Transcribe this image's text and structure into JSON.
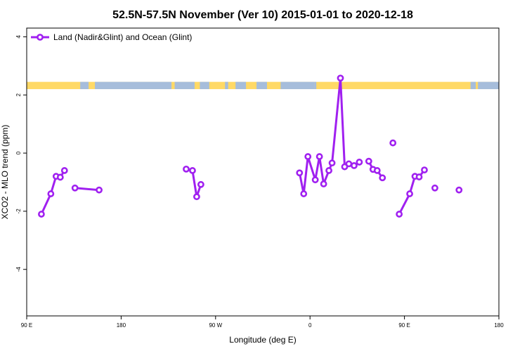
{
  "chart_data": {
    "type": "line",
    "title": "52.5N-57.5N November (Ver 10)   2015-01-01 to 2020-12-18",
    "xlabel": "Longitude (deg E)",
    "ylabel": "XCO2 - MLO trend (ppm)",
    "xlim": [
      90,
      540
    ],
    "ylim": [
      -5.6,
      4.3
    ],
    "x_ticks": [
      {
        "value": 90,
        "label": "90 E"
      },
      {
        "value": 180,
        "label": "180"
      },
      {
        "value": 270,
        "label": "90 W"
      },
      {
        "value": 360,
        "label": "0"
      },
      {
        "value": 450,
        "label": "90 E"
      },
      {
        "value": 540,
        "label": "180"
      }
    ],
    "y_ticks": [
      {
        "value": -4,
        "label": "-4"
      },
      {
        "value": -2,
        "label": "-2"
      },
      {
        "value": 0,
        "label": "0"
      },
      {
        "value": 2,
        "label": "2"
      },
      {
        "value": 4,
        "label": "4"
      }
    ],
    "legend_position": "top-left",
    "land_ocean_band": {
      "y_range": [
        2.2,
        2.45
      ],
      "land_color": "#ffd966",
      "ocean_color": "#a6bddb",
      "ocean_segments": [
        [
          141,
          149
        ],
        [
          155,
          228
        ],
        [
          231,
          250
        ],
        [
          255,
          264
        ],
        [
          279,
          282
        ],
        [
          289,
          299
        ],
        [
          309,
          319
        ],
        [
          332,
          364
        ],
        [
          364,
          366
        ],
        [
          513,
          518
        ],
        [
          520,
          540
        ]
      ]
    },
    "series": [
      {
        "name": "Land (Nadir&Glint) and Ocean (Glint)",
        "color": "#a020f0",
        "segments": [
          [
            [
              104,
              -2.1
            ],
            [
              113,
              -1.4
            ],
            [
              118,
              -0.8
            ],
            [
              122,
              -0.83
            ],
            [
              126,
              -0.6
            ]
          ],
          [
            [
              136,
              -1.2
            ],
            [
              159,
              -1.27
            ]
          ],
          [
            [
              242,
              -0.55
            ],
            [
              248,
              -0.6
            ],
            [
              252,
              -1.5
            ],
            [
              256,
              -1.08
            ]
          ],
          [
            [
              350,
              -0.68
            ],
            [
              354,
              -1.4
            ],
            [
              358,
              -0.12
            ],
            [
              365,
              -0.92
            ],
            [
              369,
              -0.12
            ],
            [
              373,
              -1.06
            ],
            [
              378,
              -0.6
            ],
            [
              381,
              -0.34
            ],
            [
              389,
              2.58
            ],
            [
              393,
              -0.47
            ],
            [
              397,
              -0.37
            ],
            [
              402,
              -0.43
            ],
            [
              407,
              -0.31
            ]
          ],
          [
            [
              416,
              -0.28
            ],
            [
              420,
              -0.56
            ],
            [
              424,
              -0.6
            ],
            [
              429,
              -0.85
            ]
          ],
          [
            [
              445,
              -2.1
            ],
            [
              455,
              -1.4
            ],
            [
              460,
              -0.8
            ],
            [
              464,
              -0.82
            ],
            [
              469,
              -0.58
            ]
          ]
        ],
        "points": [
          [
            439,
            0.35
          ],
          [
            479,
            -1.2
          ],
          [
            502,
            -1.27
          ]
        ]
      }
    ]
  }
}
